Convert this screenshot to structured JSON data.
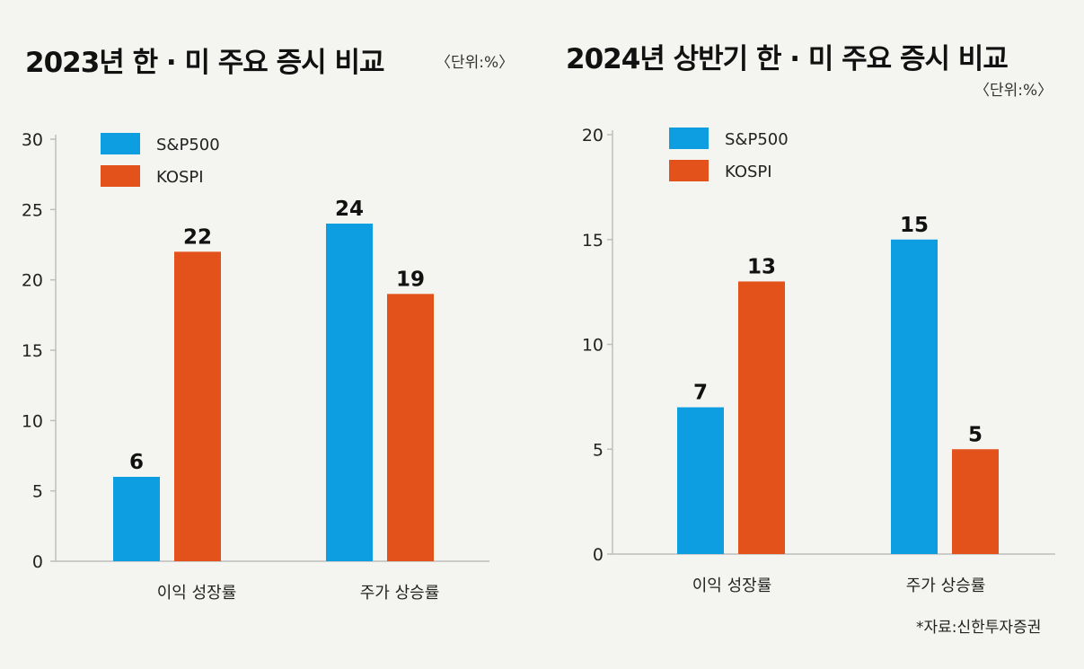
{
  "colors": {
    "sp500": "#0d9ee1",
    "kospi": "#e4521c"
  },
  "source": "*자료:신한투자증권",
  "chart_data": [
    {
      "type": "bar",
      "title": "2023년 한 · 미 주요 증시 비교",
      "unit": "〈단위:%〉",
      "categories": [
        "이익 성장률",
        "주가 상승률"
      ],
      "series": [
        {
          "name": "S&P500",
          "values": [
            6,
            24
          ]
        },
        {
          "name": "KOSPI",
          "values": [
            22,
            19
          ]
        }
      ],
      "ylim": [
        0,
        30
      ],
      "yticks": [
        0,
        5,
        10,
        15,
        20,
        25,
        30
      ],
      "legend": "top-left",
      "grid": false
    },
    {
      "type": "bar",
      "title": "2024년 상반기 한 · 미 주요 증시 비교",
      "unit": "〈단위:%〉",
      "categories": [
        "이익 성장률",
        "주가 상승률"
      ],
      "series": [
        {
          "name": "S&P500",
          "values": [
            7,
            15
          ]
        },
        {
          "name": "KOSPI",
          "values": [
            13,
            5
          ]
        }
      ],
      "ylim": [
        0,
        20
      ],
      "yticks": [
        0,
        5,
        10,
        15,
        20
      ],
      "legend": "top-left",
      "grid": false
    }
  ]
}
